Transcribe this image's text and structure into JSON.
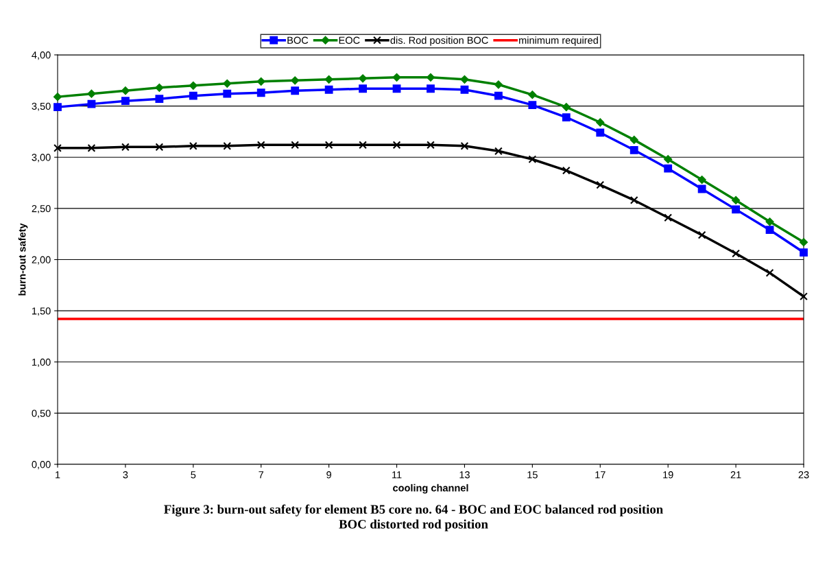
{
  "chart_data": {
    "type": "line",
    "xlabel": "cooling channel",
    "ylabel": "burn-out safety",
    "x": [
      1,
      2,
      3,
      4,
      5,
      6,
      7,
      8,
      9,
      10,
      11,
      12,
      13,
      14,
      15,
      16,
      17,
      18,
      19,
      20,
      21,
      22,
      23
    ],
    "series": [
      {
        "name": "BOC",
        "color": "#0000ff",
        "marker": "square",
        "values": [
          3.49,
          3.52,
          3.55,
          3.57,
          3.6,
          3.62,
          3.63,
          3.65,
          3.66,
          3.67,
          3.67,
          3.67,
          3.66,
          3.6,
          3.51,
          3.39,
          3.24,
          3.07,
          2.89,
          2.69,
          2.49,
          2.29,
          2.07
        ]
      },
      {
        "name": "EOC",
        "color": "#008000",
        "marker": "diamond",
        "values": [
          3.59,
          3.62,
          3.65,
          3.68,
          3.7,
          3.72,
          3.74,
          3.75,
          3.76,
          3.77,
          3.78,
          3.78,
          3.76,
          3.71,
          3.61,
          3.49,
          3.34,
          3.17,
          2.98,
          2.78,
          2.58,
          2.37,
          2.17
        ]
      },
      {
        "name": "dis. Rod position BOC",
        "color": "#000000",
        "marker": "cross",
        "values": [
          3.09,
          3.09,
          3.1,
          3.1,
          3.11,
          3.11,
          3.12,
          3.12,
          3.12,
          3.12,
          3.12,
          3.12,
          3.11,
          3.06,
          2.98,
          2.87,
          2.73,
          2.58,
          2.41,
          2.24,
          2.06,
          1.87,
          1.64
        ]
      }
    ],
    "ref_lines": [
      {
        "axis": "y",
        "value": 1.42,
        "label": "minimum required",
        "color": "#ff0000"
      }
    ],
    "xlim": [
      1,
      23
    ],
    "xticks": [
      1,
      3,
      5,
      7,
      9,
      11,
      13,
      15,
      17,
      19,
      21,
      23
    ],
    "ylim": [
      0,
      4
    ],
    "yticks": [
      {
        "value": 0,
        "label": "0,00"
      },
      {
        "value": 0.5,
        "label": "0,50"
      },
      {
        "value": 1,
        "label": "1,00"
      },
      {
        "value": 1.5,
        "label": "1,50"
      },
      {
        "value": 2,
        "label": "2,00"
      },
      {
        "value": 2.5,
        "label": "2,50"
      },
      {
        "value": 3,
        "label": "3,00"
      },
      {
        "value": 3.5,
        "label": "3,50"
      },
      {
        "value": 4,
        "label": "4,00"
      }
    ],
    "grid": "y",
    "legend": "top",
    "annotations": [
      "Figure 3: burn-out safety for element B5 core no. 64 - BOC and EOC balanced rod position\nBOC distorted rod position"
    ]
  }
}
